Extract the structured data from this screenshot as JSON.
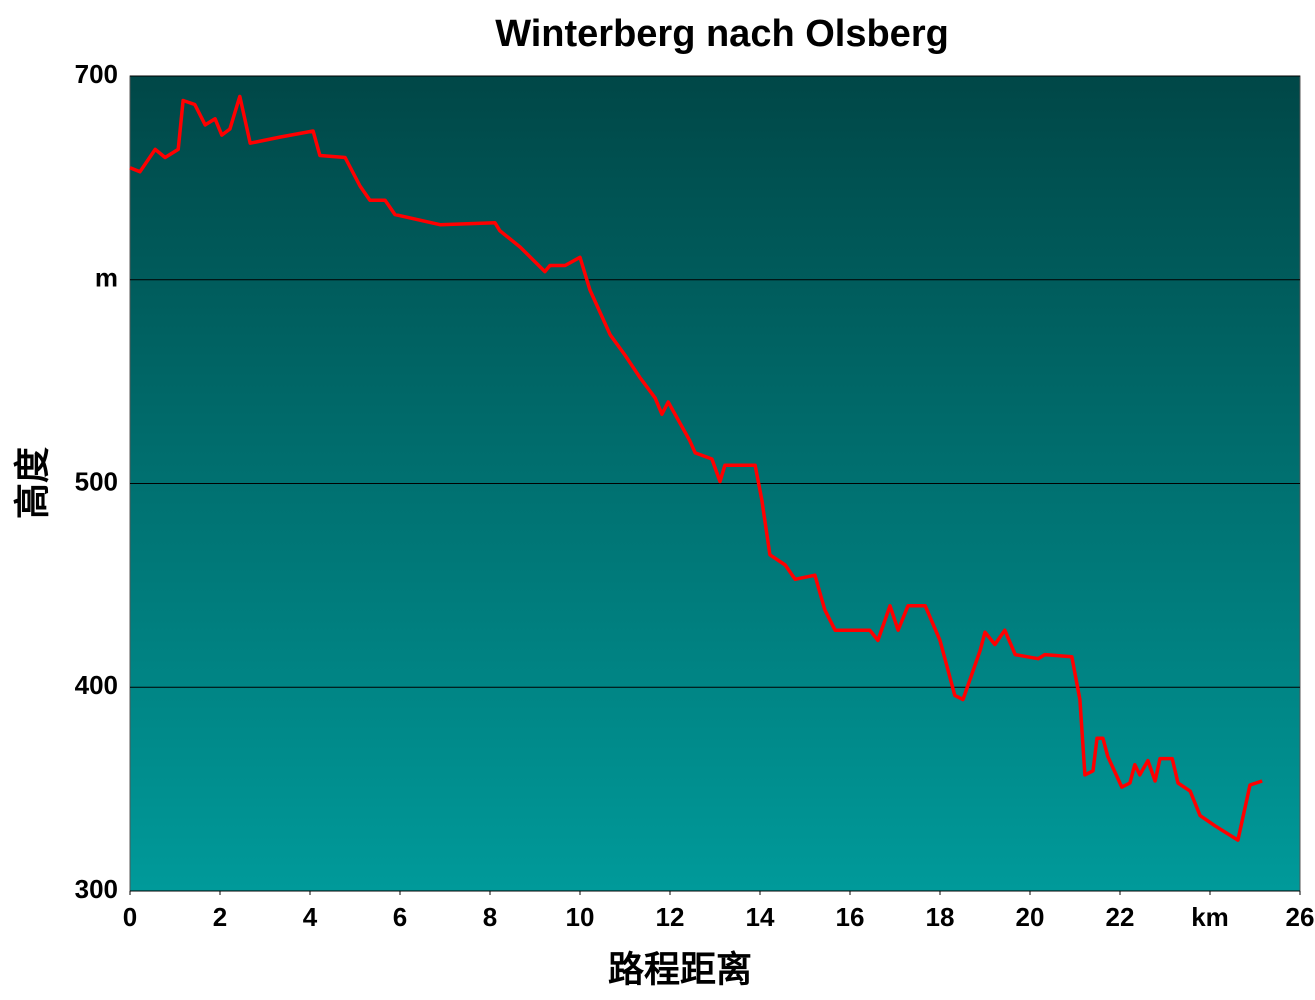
{
  "chart_data": {
    "type": "line",
    "title": "Winterberg nach Olsberg",
    "x_label": "路程距离",
    "y_label": "高度",
    "x": [
      0,
      0.22,
      0.56,
      0.78,
      1.07,
      1.18,
      1.44,
      1.67,
      1.89,
      2.04,
      2.22,
      2.44,
      2.67,
      3.33,
      4.07,
      4.22,
      4.78,
      5.11,
      5.33,
      5.67,
      5.89,
      6.89,
      8.11,
      8.22,
      8.67,
      9.22,
      9.33,
      9.67,
      10.0,
      10.22,
      10.67,
      11.0,
      11.33,
      11.67,
      11.82,
      11.96,
      12.44,
      12.56,
      12.93,
      13.11,
      13.22,
      13.89,
      14.04,
      14.22,
      14.56,
      14.78,
      15.22,
      15.44,
      15.67,
      16.44,
      16.62,
      16.89,
      17.07,
      17.29,
      17.67,
      18.0,
      18.33,
      18.51,
      18.89,
      19.0,
      19.22,
      19.44,
      19.67,
      20.18,
      20.33,
      20.93,
      21.11,
      21.22,
      21.4,
      21.49,
      21.62,
      21.73,
      22.04,
      22.22,
      22.33,
      22.44,
      22.62,
      22.78,
      22.89,
      23.16,
      23.29,
      23.56,
      23.78,
      24.11,
      24.62,
      24.89,
      25.16
    ],
    "series": [
      {
        "color": "#ff0000",
        "values": [
          655,
          653,
          664,
          660,
          664,
          688,
          686,
          676,
          679,
          671,
          674,
          690,
          667,
          670,
          673,
          661,
          660,
          646,
          639,
          639,
          632,
          627,
          628,
          624,
          616,
          604,
          607,
          607,
          611,
          595,
          573,
          563,
          552,
          542,
          534,
          540,
          521,
          515,
          512,
          501,
          509,
          509,
          492,
          465,
          460,
          453,
          455,
          438,
          428,
          428,
          423,
          440,
          428,
          440,
          440,
          423,
          396,
          394,
          418,
          427,
          421,
          428,
          416,
          414,
          416,
          415,
          394,
          357,
          359,
          375,
          375,
          366,
          351,
          353,
          362,
          357,
          364,
          354,
          365,
          365,
          353,
          349,
          337,
          332,
          325,
          352,
          354
        ]
      }
    ],
    "xlim": [
      0,
      26
    ],
    "xticks": [
      0,
      2,
      4,
      6,
      8,
      10,
      12,
      14,
      16,
      18,
      20,
      22,
      {
        "value": 24,
        "label": "km"
      },
      26
    ],
    "ylim": [
      300,
      700
    ],
    "yticks": [
      300,
      400,
      500,
      {
        "value": 600,
        "label": "m"
      },
      700
    ],
    "grid": true
  }
}
